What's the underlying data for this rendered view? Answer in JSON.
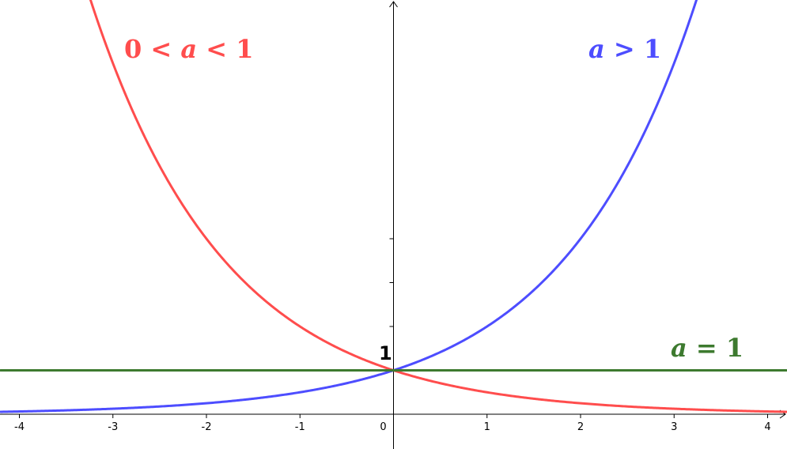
{
  "chart_data": {
    "type": "line",
    "title": "",
    "xlabel": "",
    "ylabel": "",
    "xlim": [
      -4.2,
      4.2
    ],
    "ylim": [
      -0.4,
      4.8
    ],
    "x_ticks": [
      -4,
      -3,
      -2,
      -1,
      0,
      1,
      2,
      3,
      4
    ],
    "x_tick_labels": [
      "-4",
      "-3",
      "-2",
      "-1",
      "0",
      "1",
      "2",
      "3",
      "4"
    ],
    "y_tick_values": [
      1,
      2,
      3,
      4
    ],
    "y_label_one": "1",
    "grid": false,
    "series": [
      {
        "label_parts": [
          "0",
          " < ",
          "a",
          " < ",
          "1"
        ],
        "color": "#ff4d4d",
        "function": "exponential",
        "base": 0.5
      },
      {
        "label_parts": [
          "a",
          " > ",
          "1"
        ],
        "color": "#4d4dff",
        "function": "exponential",
        "base": 2
      },
      {
        "label_parts": [
          "a",
          " = ",
          "1"
        ],
        "color": "#3d7a2f",
        "function": "exponential",
        "base": 1
      }
    ]
  }
}
